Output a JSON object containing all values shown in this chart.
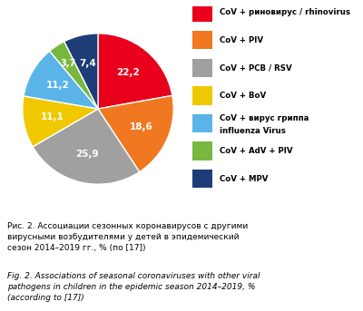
{
  "values": [
    22.2,
    18.6,
    25.9,
    11.1,
    11.2,
    3.7,
    7.4
  ],
  "labels": [
    "22,2",
    "18,6",
    "25,9",
    "11,1",
    "11,2",
    "3,7",
    "7,4"
  ],
  "colors": [
    "#e8001c",
    "#f07820",
    "#a0a0a0",
    "#f0c800",
    "#5ab4e8",
    "#78b840",
    "#1e3c78"
  ],
  "legend_labels": [
    "CoV + риновирус / rhinovirus",
    "CoV + PIV",
    "CoV + РСВ / RSV",
    "CoV + BoV",
    "CoV + вирус гриппа\ninfluenza Virus",
    "CoV + AdV + PIV",
    "CoV + MPV"
  ],
  "caption_ru": "Рис. 2. Ассоциации сезонных коронавирусов с другими\nвирусными возбудителями у детей в эпидемический\nсезон 2014–2019 гг., % (по [17])",
  "caption_en": "Fig. 2. Associations of seasonal coronaviruses with other viral\npathogens in children in the epidemic season 2014–2019, %\n(according to [17])",
  "startangle": 90,
  "bg_color": "#ffffff",
  "border_color": "#2060a0"
}
